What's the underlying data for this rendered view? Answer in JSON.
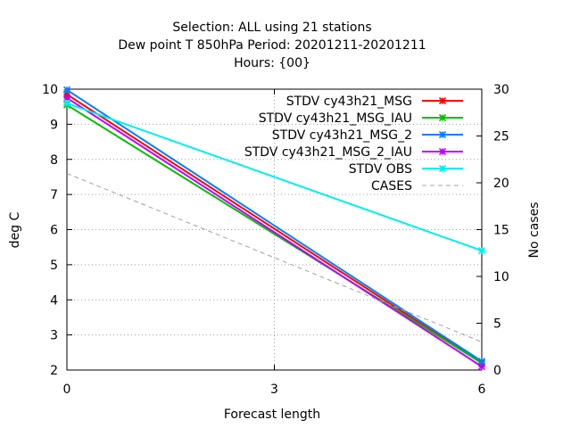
{
  "chart_data": {
    "type": "line",
    "title_lines": [
      "Selection: ALL using    21 stations",
      "Dew point T 850hPa   Period: 20201211-20201211",
      "Hours: {00}"
    ],
    "xlabel": "Forecast length",
    "ylabel": "deg C",
    "y2label": "No cases",
    "xlim": [
      0,
      6
    ],
    "ylim": [
      2,
      10
    ],
    "y2lim": [
      0,
      30
    ],
    "x_ticks": [
      "0",
      "3",
      "6"
    ],
    "y_ticks": [
      "2",
      "3",
      "4",
      "5",
      "6",
      "7",
      "8",
      "9",
      "10"
    ],
    "y2_ticks": [
      "0",
      "5",
      "10",
      "15",
      "20",
      "25",
      "30"
    ],
    "grid": true,
    "legend_position": "top-right",
    "x": [
      0,
      6
    ],
    "series": [
      {
        "name": "STDV cy43h21_MSG",
        "axis": "y",
        "color": "#ff0000",
        "marker": "x",
        "values": [
          9.85,
          2.2
        ]
      },
      {
        "name": "STDV cy43h21_MSG_IAU",
        "axis": "y",
        "color": "#00c000",
        "marker": "x",
        "values": [
          9.55,
          2.2
        ]
      },
      {
        "name": "STDV cy43h21_MSG_2",
        "axis": "y",
        "color": "#0080ff",
        "marker": "x",
        "values": [
          9.98,
          2.25
        ]
      },
      {
        "name": "STDV cy43h21_MSG_2_IAU",
        "axis": "y",
        "color": "#c000ff",
        "marker": "x",
        "values": [
          9.75,
          2.1
        ]
      },
      {
        "name": "STDV OBS",
        "axis": "y",
        "color": "#00eeee",
        "marker": "x",
        "values": [
          9.6,
          5.4
        ]
      },
      {
        "name": "CASES",
        "axis": "y2",
        "color": "#a0a0a0",
        "marker": "none",
        "dashed": true,
        "values": [
          21,
          3
        ]
      }
    ]
  }
}
